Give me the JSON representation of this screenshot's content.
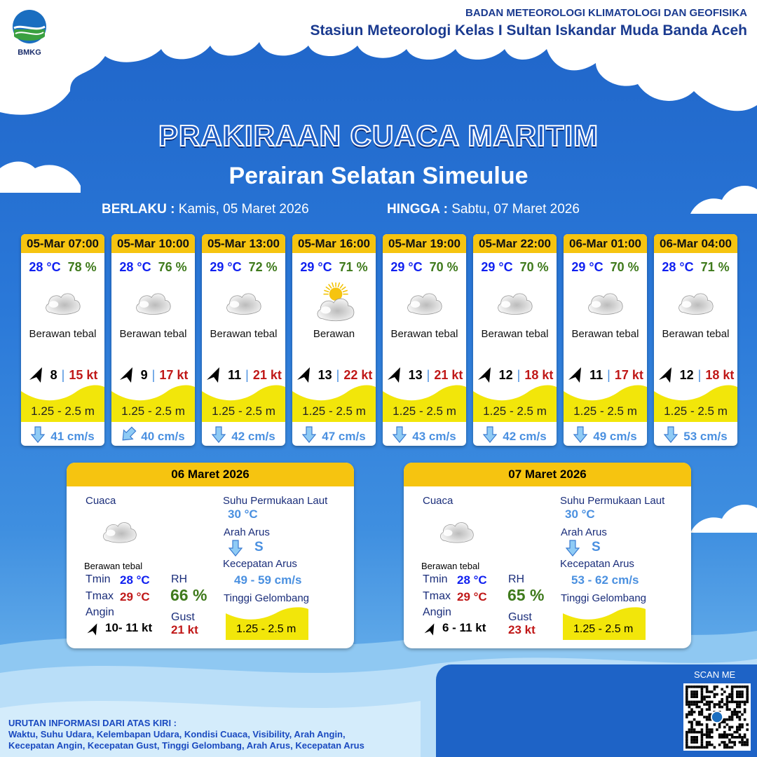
{
  "header": {
    "logo_text": "BMKG",
    "org": "BADAN METEOROLOGI KLIMATOLOGI DAN GEOFISIKA",
    "station": "Stasiun Meteorologi Kelas I Sultan Iskandar Muda Banda Aceh"
  },
  "title": "PRAKIRAAN CUACA MARITIM",
  "subtitle": "Perairan Selatan Simeulue",
  "validity": {
    "from_label": "BERLAKU :",
    "from": "Kamis, 05 Maret 2026",
    "to_label": "HINGGA :",
    "to": "Sabtu, 07 Maret 2026"
  },
  "forecasts": [
    {
      "time": "05-Mar 07:00",
      "temp": "28 °C",
      "rh": "78 %",
      "icon": "cloud-icon",
      "weather": "Berawan tebal",
      "wind": "8",
      "gust": "15 kt",
      "wave": "1.25 - 2.5 m",
      "current": "41 cm/s",
      "current_dir": "down"
    },
    {
      "time": "05-Mar 10:00",
      "temp": "28 °C",
      "rh": "76 %",
      "icon": "cloud-icon",
      "weather": "Berawan tebal",
      "wind": "9",
      "gust": "17 kt",
      "wave": "1.25 - 2.5 m",
      "current": "40 cm/s",
      "current_dir": "down-left"
    },
    {
      "time": "05-Mar 13:00",
      "temp": "29 °C",
      "rh": "72 %",
      "icon": "cloud-icon",
      "weather": "Berawan tebal",
      "wind": "11",
      "gust": "21 kt",
      "wave": "1.25 - 2.5 m",
      "current": "42 cm/s",
      "current_dir": "down"
    },
    {
      "time": "05-Mar 16:00",
      "temp": "29 °C",
      "rh": "71 %",
      "icon": "partly-cloudy-icon",
      "weather": "Berawan",
      "wind": "13",
      "gust": "22 kt",
      "wave": "1.25 - 2.5 m",
      "current": "47 cm/s",
      "current_dir": "down"
    },
    {
      "time": "05-Mar 19:00",
      "temp": "29 °C",
      "rh": "70 %",
      "icon": "cloud-icon",
      "weather": "Berawan tebal",
      "wind": "13",
      "gust": "21 kt",
      "wave": "1.25 - 2.5 m",
      "current": "43 cm/s",
      "current_dir": "down"
    },
    {
      "time": "05-Mar 22:00",
      "temp": "29 °C",
      "rh": "70 %",
      "icon": "cloud-icon",
      "weather": "Berawan tebal",
      "wind": "12",
      "gust": "18 kt",
      "wave": "1.25 - 2.5 m",
      "current": "42 cm/s",
      "current_dir": "down"
    },
    {
      "time": "06-Mar 01:00",
      "temp": "29 °C",
      "rh": "70 %",
      "icon": "cloud-icon",
      "weather": "Berawan tebal",
      "wind": "11",
      "gust": "17 kt",
      "wave": "1.25 - 2.5 m",
      "current": "49 cm/s",
      "current_dir": "down"
    },
    {
      "time": "06-Mar 04:00",
      "temp": "28 °C",
      "rh": "71 %",
      "icon": "cloud-icon",
      "weather": "Berawan tebal",
      "wind": "12",
      "gust": "18 kt",
      "wave": "1.25 - 2.5 m",
      "current": "53 cm/s",
      "current_dir": "down"
    }
  ],
  "labels": {
    "cuaca": "Cuaca",
    "sst": "Suhu Permukaan Laut",
    "arah_arus": "Arah Arus",
    "kec_arus": "Kecepatan Arus",
    "tinggi": "Tinggi Gelombang",
    "tmin": "Tmin",
    "tmax": "Tmax",
    "rh": "RH",
    "angin": "Angin",
    "gust": "Gust"
  },
  "daily": [
    {
      "date": "06 Maret 2026",
      "weather": "Berawan tebal",
      "tmin": "28 °C",
      "tmax": "29 °C",
      "rh": "66 %",
      "wind": "10- 11 kt",
      "gust": "21 kt",
      "sst": "30 °C",
      "current_dir": "S",
      "current_speed": "49  - 59 cm/s",
      "wave": "1.25 - 2.5 m"
    },
    {
      "date": "07 Maret 2026",
      "weather": "Berawan tebal",
      "tmin": "28 °C",
      "tmax": "29 °C",
      "rh": "65 %",
      "wind": "6  - 11 kt",
      "gust": "23 kt",
      "sst": "30 °C",
      "current_dir": "S",
      "current_speed": "53  -  62 cm/s",
      "wave": "1.25 - 2.5 m"
    }
  ],
  "scan_me": "SCAN ME",
  "footer": {
    "line1": "URUTAN INFORMASI DARI ATAS KIRI :",
    "line2": "Waktu, Suhu Udara, Kelembapan Udara, Kondisi Cuaca, Visibility, Arah Angin,",
    "line3": "Kecepatan Angin, Kecepatan Gust, Tinggi Gelombang, Arah Arus, Kecepatan Arus"
  },
  "colors": {
    "header_yellow": "#f6c410",
    "wave_yellow": "#f2e60a",
    "temp": "#1020f0",
    "rh": "#3f7a1c",
    "gust": "#c01818",
    "current": "#4a90e0"
  }
}
